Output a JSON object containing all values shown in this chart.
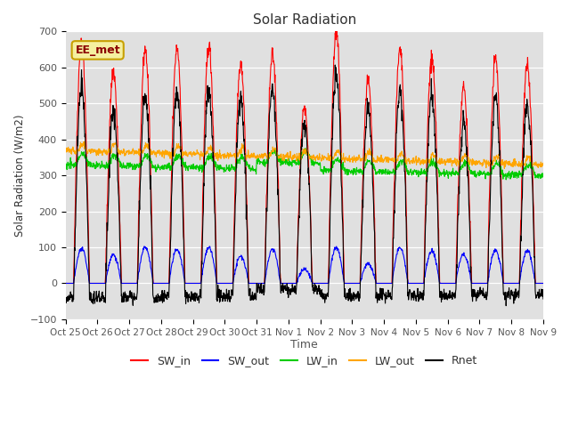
{
  "title": "Solar Radiation",
  "ylabel": "Solar Radiation (W/m2)",
  "xlabel": "Time",
  "ylim": [
    -100,
    700
  ],
  "yticks": [
    -100,
    0,
    100,
    200,
    300,
    400,
    500,
    600,
    700
  ],
  "label_text": "EE_met",
  "x_tick_labels": [
    "Oct 25",
    "Oct 26",
    "Oct 27",
    "Oct 28",
    "Oct 29",
    "Oct 30",
    "Oct 31",
    "Nov 1",
    "Nov 2",
    "Nov 3",
    "Nov 4",
    "Nov 5",
    "Nov 6",
    "Nov 7",
    "Nov 8",
    "Nov 9"
  ],
  "colors": {
    "SW_in": "#ff0000",
    "SW_out": "#0000ff",
    "LW_in": "#00cc00",
    "LW_out": "#ffa500",
    "Rnet": "#000000"
  },
  "bg_color": "#e0e0e0",
  "legend_labels": [
    "SW_in",
    "SW_out",
    "LW_in",
    "LW_out",
    "Rnet"
  ]
}
